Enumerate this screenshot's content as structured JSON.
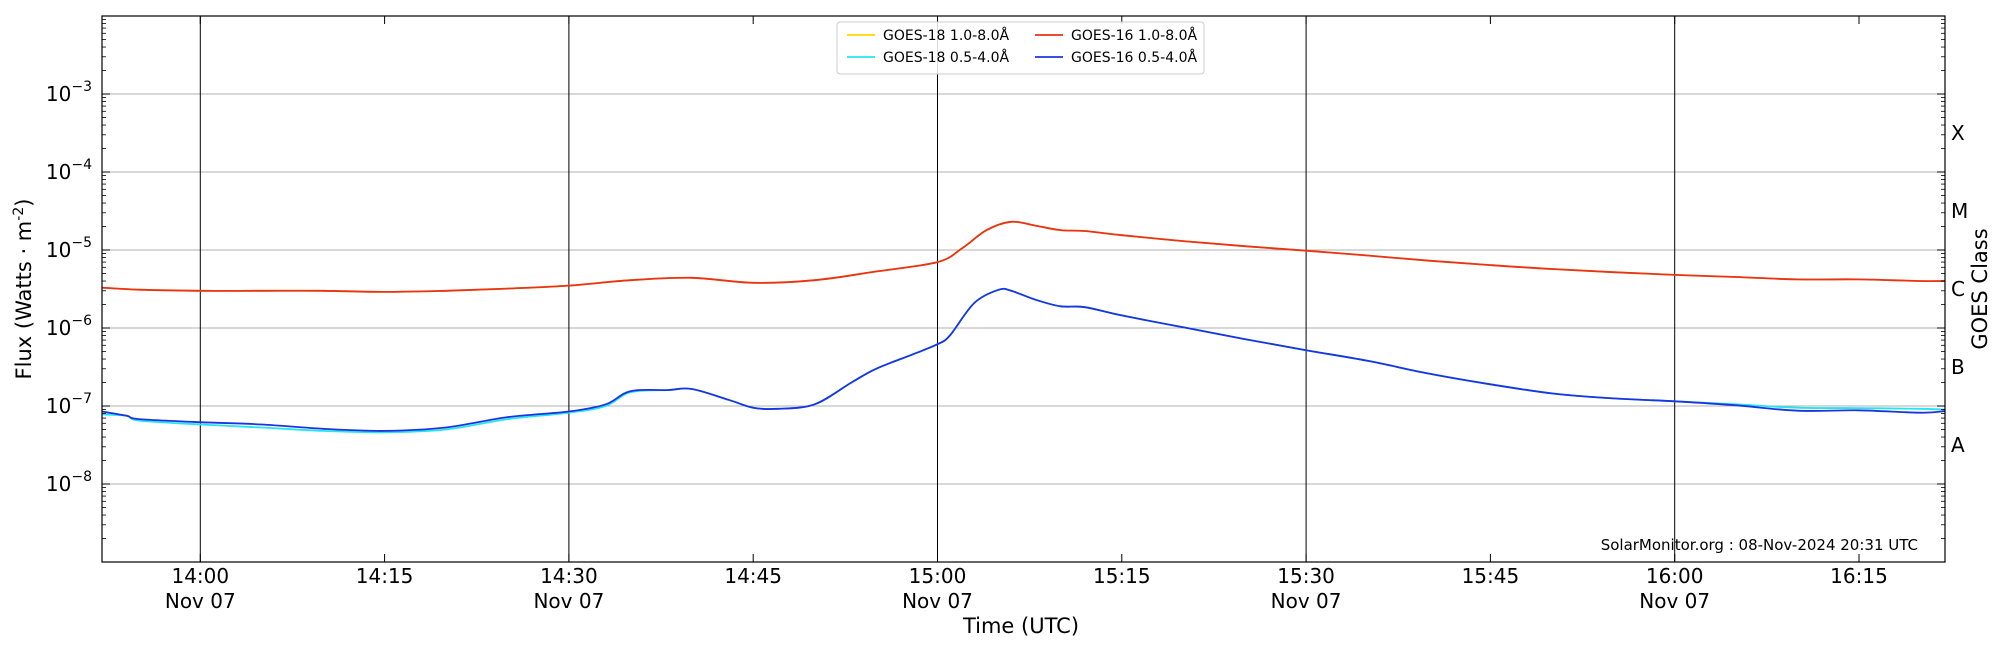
{
  "chart_data": {
    "type": "line",
    "xlabel": "Time (UTC)",
    "ylabel_main": "Flux (Watts · m",
    "ylabel_sup": "-2",
    "ylabel_close": ")",
    "y2label": "GOES Class",
    "yscale": "log",
    "xlim": [
      "13:52",
      "16:22"
    ],
    "ylim": [
      1e-09,
      0.01
    ],
    "grid": "horizontal",
    "legend_position": "top-center",
    "credit": "SolarMonitor.org : 08-Nov-2024 20:31 UTC",
    "x_ticks": [
      {
        "time": "14:00",
        "label": "14:00",
        "sublabel": "Nov 07",
        "vline": true
      },
      {
        "time": "14:15",
        "label": "14:15",
        "sublabel": "",
        "vline": false
      },
      {
        "time": "14:30",
        "label": "14:30",
        "sublabel": "Nov 07",
        "vline": true
      },
      {
        "time": "14:45",
        "label": "14:45",
        "sublabel": "",
        "vline": false
      },
      {
        "time": "15:00",
        "label": "15:00",
        "sublabel": "Nov 07",
        "vline": true
      },
      {
        "time": "15:15",
        "label": "15:15",
        "sublabel": "",
        "vline": false
      },
      {
        "time": "15:30",
        "label": "15:30",
        "sublabel": "Nov 07",
        "vline": true
      },
      {
        "time": "15:45",
        "label": "15:45",
        "sublabel": "",
        "vline": false
      },
      {
        "time": "16:00",
        "label": "16:00",
        "sublabel": "Nov 07",
        "vline": true
      },
      {
        "time": "16:15",
        "label": "16:15",
        "sublabel": "",
        "vline": false
      }
    ],
    "y_ticks": [
      {
        "exp": -8,
        "label": "10",
        "sup": "−8"
      },
      {
        "exp": -7,
        "label": "10",
        "sup": "−7"
      },
      {
        "exp": -6,
        "label": "10",
        "sup": "−6"
      },
      {
        "exp": -5,
        "label": "10",
        "sup": "−5"
      },
      {
        "exp": -4,
        "label": "10",
        "sup": "−4"
      },
      {
        "exp": -3,
        "label": "10",
        "sup": "−3"
      }
    ],
    "goes_classes": [
      {
        "label": "A",
        "exp": -7.5
      },
      {
        "label": "B",
        "exp": -6.5
      },
      {
        "label": "C",
        "exp": -5.5
      },
      {
        "label": "M",
        "exp": -4.5
      },
      {
        "label": "X",
        "exp": -3.5
      }
    ],
    "legend": [
      {
        "name": "GOES-18 1.0-8.0Å",
        "color": "#ffd700"
      },
      {
        "name": "GOES-18 0.5-4.0Å",
        "color": "#22e6f0"
      },
      {
        "name": "GOES-16 1.0-8.0Å",
        "color": "#e8321c"
      },
      {
        "name": "GOES-16 0.5-4.0Å",
        "color": "#1c34e0"
      }
    ],
    "series": [
      {
        "name": "GOES-18 1.0-8.0Å",
        "color": "#ffd700",
        "x": [
          "13:52",
          "13:55",
          "14:00",
          "14:05",
          "14:10",
          "14:15",
          "14:20",
          "14:25",
          "14:30",
          "14:35",
          "14:40",
          "14:45",
          "14:50",
          "14:55",
          "15:00",
          "15:02",
          "15:04",
          "15:06",
          "15:08",
          "15:10",
          "15:12",
          "15:15",
          "15:20",
          "15:25",
          "15:30",
          "15:35",
          "15:40",
          "15:45",
          "15:50",
          "15:55",
          "16:00",
          "16:05",
          "16:10",
          "16:15",
          "16:20",
          "16:22"
        ],
        "values": [
          3.3e-06,
          3.1e-06,
          3e-06,
          3e-06,
          3e-06,
          2.9e-06,
          3e-06,
          3.2e-06,
          3.5e-06,
          4.1e-06,
          4.4e-06,
          3.8e-06,
          4.1e-06,
          5.3e-06,
          7e-06,
          1.05e-05,
          1.8e-05,
          2.3e-05,
          2.05e-05,
          1.8e-05,
          1.75e-05,
          1.55e-05,
          1.3e-05,
          1.12e-05,
          9.8e-06,
          8.5e-06,
          7.3e-06,
          6.4e-06,
          5.7e-06,
          5.2e-06,
          4.8e-06,
          4.5e-06,
          4.2e-06,
          4.2e-06,
          4e-06,
          4e-06
        ]
      },
      {
        "name": "GOES-16 1.0-8.0Å",
        "color": "#e8321c",
        "x": [
          "13:52",
          "13:55",
          "14:00",
          "14:05",
          "14:10",
          "14:15",
          "14:20",
          "14:25",
          "14:30",
          "14:35",
          "14:40",
          "14:45",
          "14:50",
          "14:55",
          "15:00",
          "15:02",
          "15:04",
          "15:06",
          "15:08",
          "15:10",
          "15:12",
          "15:15",
          "15:20",
          "15:25",
          "15:30",
          "15:35",
          "15:40",
          "15:45",
          "15:50",
          "15:55",
          "16:00",
          "16:05",
          "16:10",
          "16:15",
          "16:20",
          "16:22"
        ],
        "values": [
          3.3e-06,
          3.1e-06,
          3e-06,
          3e-06,
          3e-06,
          2.9e-06,
          3e-06,
          3.2e-06,
          3.5e-06,
          4.1e-06,
          4.4e-06,
          3.8e-06,
          4.1e-06,
          5.3e-06,
          7e-06,
          1.05e-05,
          1.8e-05,
          2.3e-05,
          2.05e-05,
          1.8e-05,
          1.75e-05,
          1.55e-05,
          1.3e-05,
          1.12e-05,
          9.8e-06,
          8.5e-06,
          7.3e-06,
          6.4e-06,
          5.7e-06,
          5.2e-06,
          4.8e-06,
          4.5e-06,
          4.2e-06,
          4.2e-06,
          4e-06,
          4e-06
        ]
      },
      {
        "name": "GOES-18 0.5-4.0Å",
        "color": "#22e6f0",
        "x": [
          "13:52",
          "13:54",
          "13:55",
          "14:00",
          "14:05",
          "14:10",
          "14:15",
          "14:20",
          "14:25",
          "14:30",
          "14:33",
          "14:35",
          "14:38",
          "14:40",
          "14:43",
          "14:45",
          "14:47",
          "14:50",
          "14:53",
          "14:55",
          "14:58",
          "15:00",
          "15:01",
          "15:03",
          "15:05",
          "15:06",
          "15:08",
          "15:10",
          "15:12",
          "15:15",
          "15:20",
          "15:25",
          "15:30",
          "15:35",
          "15:40",
          "15:45",
          "15:50",
          "15:55",
          "16:00",
          "16:05",
          "16:10",
          "16:15",
          "16:20",
          "16:22"
        ],
        "values": [
          7.8e-08,
          7.5e-08,
          6.5e-08,
          5.8e-08,
          5.3e-08,
          4.8e-08,
          4.6e-08,
          5e-08,
          6.8e-08,
          8.2e-08,
          1e-07,
          1.5e-07,
          1.6e-07,
          1.65e-07,
          1.2e-07,
          9.5e-08,
          9.2e-08,
          1.05e-07,
          2e-07,
          3e-07,
          4.6e-07,
          6.2e-07,
          8e-07,
          2.1e-06,
          3.1e-06,
          3e-06,
          2.3e-06,
          1.9e-06,
          1.85e-06,
          1.45e-06,
          1.02e-06,
          7.2e-07,
          5.2e-07,
          3.8e-07,
          2.6e-07,
          1.9e-07,
          1.45e-07,
          1.25e-07,
          1.15e-07,
          1.05e-07,
          9.5e-08,
          9.4e-08,
          9.2e-08,
          9e-08
        ]
      },
      {
        "name": "GOES-16 0.5-4.0Å",
        "color": "#1c34e0",
        "x": [
          "13:52",
          "13:54",
          "13:55",
          "14:00",
          "14:05",
          "14:10",
          "14:15",
          "14:20",
          "14:25",
          "14:30",
          "14:33",
          "14:35",
          "14:38",
          "14:40",
          "14:43",
          "14:45",
          "14:47",
          "14:50",
          "14:53",
          "14:55",
          "14:58",
          "15:00",
          "15:01",
          "15:03",
          "15:05",
          "15:06",
          "15:08",
          "15:10",
          "15:12",
          "15:15",
          "15:20",
          "15:25",
          "15:30",
          "15:35",
          "15:40",
          "15:45",
          "15:50",
          "15:55",
          "16:00",
          "16:05",
          "16:10",
          "16:15",
          "16:20",
          "16:22"
        ],
        "values": [
          8.5e-08,
          7.5e-08,
          6.8e-08,
          6.2e-08,
          5.8e-08,
          5.1e-08,
          4.8e-08,
          5.3e-08,
          7.2e-08,
          8.5e-08,
          1.05e-07,
          1.55e-07,
          1.6e-07,
          1.65e-07,
          1.2e-07,
          9.5e-08,
          9.2e-08,
          1.05e-07,
          2e-07,
          3e-07,
          4.6e-07,
          6.2e-07,
          8e-07,
          2.1e-06,
          3.1e-06,
          3e-06,
          2.3e-06,
          1.9e-06,
          1.85e-06,
          1.45e-06,
          1.02e-06,
          7.2e-07,
          5.2e-07,
          3.8e-07,
          2.6e-07,
          1.9e-07,
          1.45e-07,
          1.25e-07,
          1.15e-07,
          1.02e-07,
          8.7e-08,
          8.8e-08,
          8.2e-08,
          8.6e-08
        ]
      }
    ]
  }
}
